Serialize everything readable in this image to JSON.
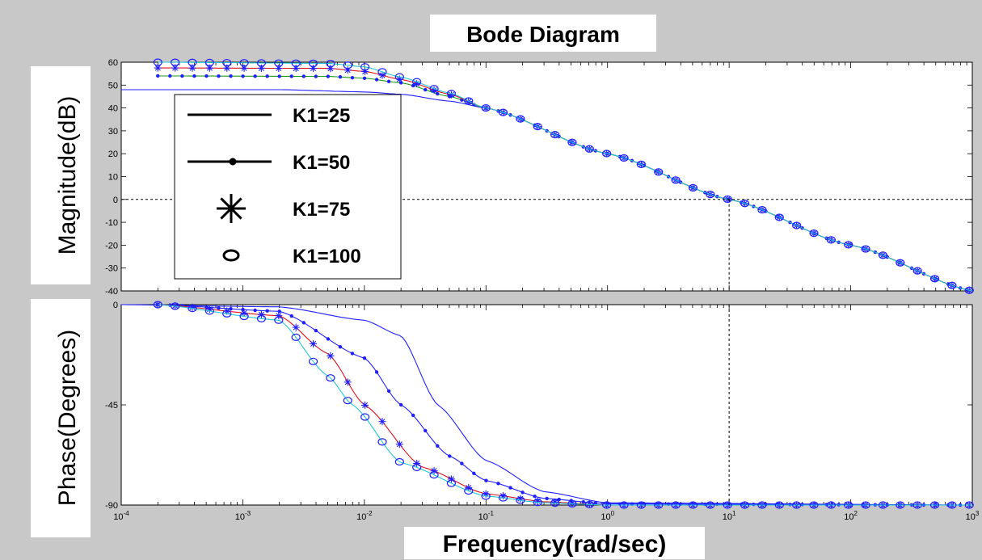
{
  "chart_data": {
    "type": "line",
    "title": "Bode Diagram",
    "xlabel": "Frequency(rad/sec)",
    "xscale": "log",
    "xlim": [
      0.0001,
      1000
    ],
    "x_tick_labels": [
      {
        "base": "10",
        "exp": "-4"
      },
      {
        "base": "10",
        "exp": "-3"
      },
      {
        "base": "10",
        "exp": "-2"
      },
      {
        "base": "10",
        "exp": "-1"
      },
      {
        "base": "10",
        "exp": "0"
      },
      {
        "base": "10",
        "exp": "1"
      },
      {
        "base": "10",
        "exp": "2"
      },
      {
        "base": "10",
        "exp": "3"
      }
    ],
    "magnitude": {
      "ylabel": "Magnitude(dB)",
      "ylim": [
        -40,
        60
      ],
      "y_ticks": [
        60,
        50,
        40,
        30,
        20,
        10,
        0,
        -10,
        -20,
        -30,
        -40
      ],
      "crossover_frequency": 10,
      "series": [
        {
          "name": "K1=25",
          "k": 25,
          "color": "#1f1fff",
          "marker": "none",
          "points": [
            [
              0.0001,
              48
            ],
            [
              0.002,
              48
            ],
            [
              0.01,
              47
            ],
            [
              0.02,
              46
            ],
            [
              0.05,
              43
            ],
            [
              0.1,
              40
            ],
            [
              1,
              20
            ],
            [
              10,
              0
            ],
            [
              100,
              -20
            ],
            [
              1000,
              -40
            ]
          ]
        },
        {
          "name": "K1=50",
          "k": 50,
          "color": "#1a9a1a",
          "marker": "dot",
          "points": [
            [
              0.0002,
              54
            ],
            [
              0.005,
              53.8
            ],
            [
              0.01,
              53
            ],
            [
              0.02,
              51
            ],
            [
              0.05,
              45
            ],
            [
              0.1,
              40
            ],
            [
              1,
              20
            ],
            [
              10,
              0
            ],
            [
              100,
              -20
            ],
            [
              1000,
              -40
            ]
          ]
        },
        {
          "name": "K1=75",
          "k": 75,
          "color": "#e0101a",
          "marker": "star",
          "points": [
            [
              0.0002,
              57.5
            ],
            [
              0.005,
              57.3
            ],
            [
              0.01,
              56
            ],
            [
              0.02,
              52.5
            ],
            [
              0.05,
              46
            ],
            [
              0.1,
              40
            ],
            [
              1,
              20
            ],
            [
              10,
              0
            ],
            [
              100,
              -20
            ],
            [
              1000,
              -40
            ]
          ]
        },
        {
          "name": "K1=100",
          "k": 100,
          "color": "#20c8d8",
          "marker": "circle",
          "points": [
            [
              0.0002,
              60
            ],
            [
              0.005,
              59.5
            ],
            [
              0.01,
              58
            ],
            [
              0.02,
              53.5
            ],
            [
              0.05,
              46.5
            ],
            [
              0.1,
              40
            ],
            [
              1,
              20
            ],
            [
              10,
              0
            ],
            [
              100,
              -20
            ],
            [
              1000,
              -40
            ]
          ]
        }
      ]
    },
    "phase": {
      "ylabel": "Phase(Degrees)",
      "ylim": [
        -90,
        0
      ],
      "y_ticks": [
        0,
        -45,
        -90
      ],
      "series": [
        {
          "name": "K1=25",
          "k": 25,
          "color": "#1f1fff",
          "marker": "none",
          "points": [
            [
              0.0001,
              0
            ],
            [
              0.002,
              -1
            ],
            [
              0.01,
              -7
            ],
            [
              0.02,
              -14
            ],
            [
              0.04,
              -45
            ],
            [
              0.1,
              -70
            ],
            [
              0.3,
              -84
            ],
            [
              1,
              -89
            ],
            [
              1000,
              -90
            ]
          ]
        },
        {
          "name": "K1=50",
          "k": 50,
          "color": "#1f1fff",
          "marker": "dot",
          "points": [
            [
              0.0002,
              0
            ],
            [
              0.002,
              -3
            ],
            [
              0.01,
              -24
            ],
            [
              0.02,
              -45
            ],
            [
              0.05,
              -68
            ],
            [
              0.1,
              -79
            ],
            [
              0.3,
              -87
            ],
            [
              1,
              -89.5
            ],
            [
              1000,
              -90
            ]
          ]
        },
        {
          "name": "K1=75",
          "k": 75,
          "color": "#e0101a",
          "marker": "star",
          "points": [
            [
              0.0002,
              0
            ],
            [
              0.002,
              -5
            ],
            [
              0.005,
              -22
            ],
            [
              0.01,
              -45
            ],
            [
              0.03,
              -73
            ],
            [
              0.1,
              -85
            ],
            [
              0.3,
              -88.5
            ],
            [
              1,
              -90
            ],
            [
              1000,
              -90
            ]
          ]
        },
        {
          "name": "K1=100",
          "k": 100,
          "color": "#20c8d8",
          "marker": "circle",
          "points": [
            [
              0.0002,
              0
            ],
            [
              0.002,
              -7
            ],
            [
              0.005,
              -32
            ],
            [
              0.008,
              -45
            ],
            [
              0.02,
              -71
            ],
            [
              0.1,
              -86
            ],
            [
              0.3,
              -89
            ],
            [
              1,
              -90
            ],
            [
              1000,
              -90
            ]
          ]
        }
      ]
    },
    "legend": {
      "placement": "top-left",
      "entries": [
        {
          "label": "K1=25",
          "marker": "none"
        },
        {
          "label": "K1=50",
          "marker": "dot"
        },
        {
          "label": "K1=75",
          "marker": "star"
        },
        {
          "label": "K1=100",
          "marker": "circle"
        }
      ]
    },
    "grid": false
  }
}
